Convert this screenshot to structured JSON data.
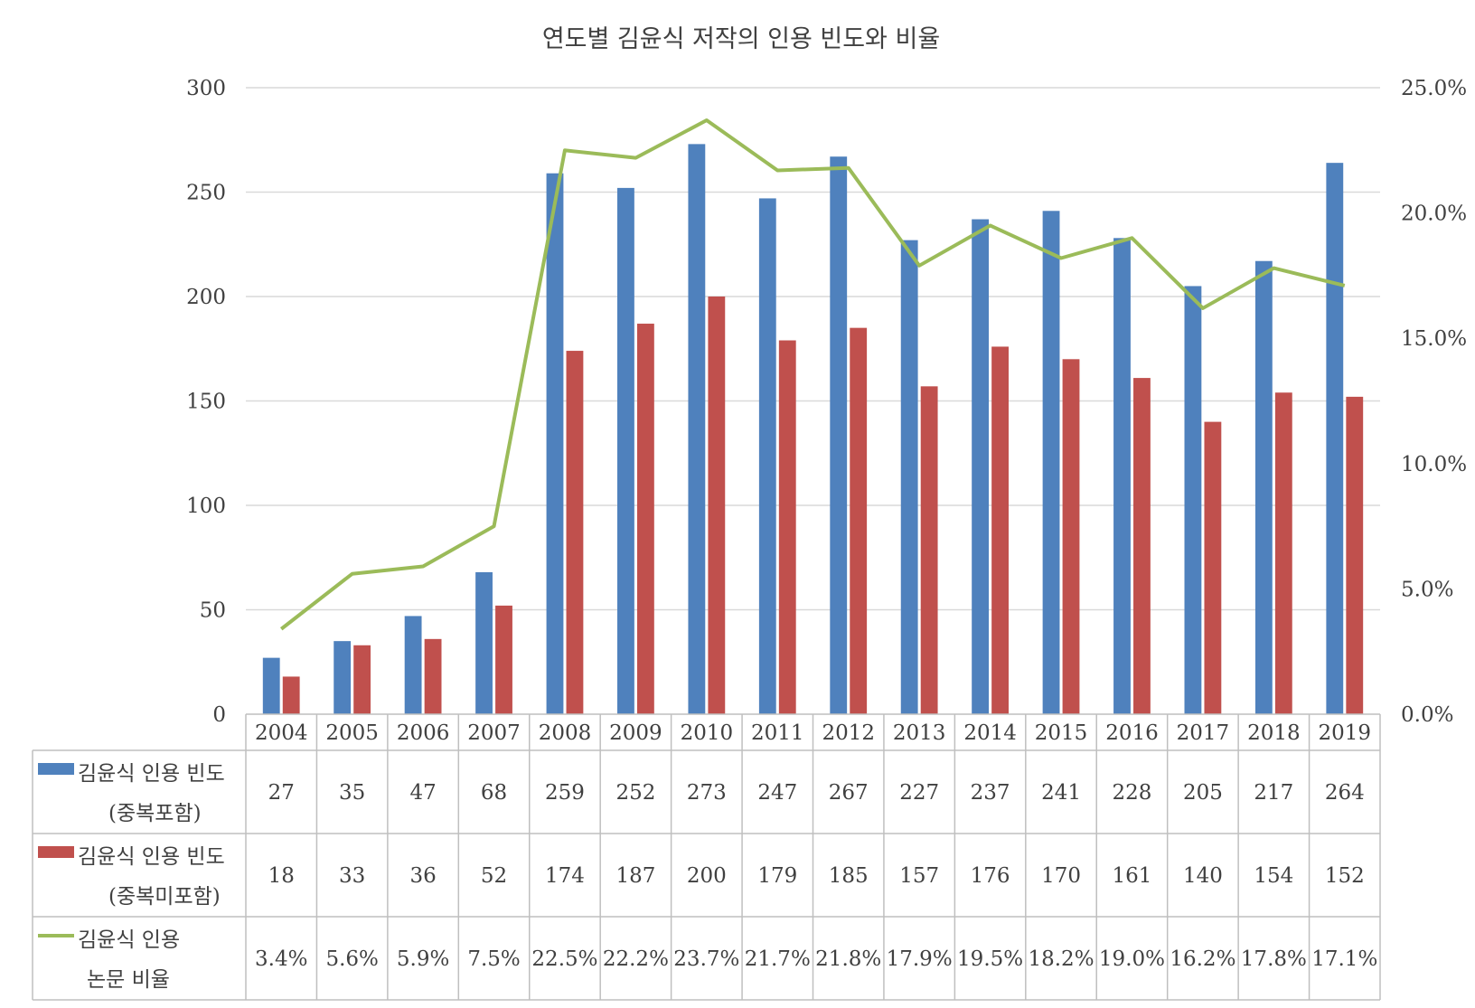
{
  "chart_data": {
    "type": "bar",
    "title": "연도별 김윤식 저작의 인용 빈도와 비율",
    "categories": [
      "2004",
      "2005",
      "2006",
      "2007",
      "2008",
      "2009",
      "2010",
      "2011",
      "2012",
      "2013",
      "2014",
      "2015",
      "2016",
      "2017",
      "2018",
      "2019"
    ],
    "y_left": {
      "min": 0,
      "max": 300,
      "ticks": [
        0,
        50,
        100,
        150,
        200,
        250,
        300
      ]
    },
    "y_right": {
      "min": 0,
      "max": 25,
      "ticks": [
        "0.0%",
        "5.0%",
        "10.0%",
        "15.0%",
        "20.0%",
        "25.0%"
      ]
    },
    "grid": true,
    "legend": "data-table",
    "series": [
      {
        "name_lines": [
          "김윤식 인용 빈도",
          "(중복포함)"
        ],
        "kind": "bar",
        "axis": "left",
        "color": "#4F81BD",
        "values": [
          27,
          35,
          47,
          68,
          259,
          252,
          273,
          247,
          267,
          227,
          237,
          241,
          228,
          205,
          217,
          264
        ],
        "labels": [
          "27",
          "35",
          "47",
          "68",
          "259",
          "252",
          "273",
          "247",
          "267",
          "227",
          "237",
          "241",
          "228",
          "205",
          "217",
          "264"
        ]
      },
      {
        "name_lines": [
          "김윤식 인용 빈도",
          "(중복미포함)"
        ],
        "kind": "bar",
        "axis": "left",
        "color": "#C0504D",
        "values": [
          18,
          33,
          36,
          52,
          174,
          187,
          200,
          179,
          185,
          157,
          176,
          170,
          161,
          140,
          154,
          152
        ],
        "labels": [
          "18",
          "33",
          "36",
          "52",
          "174",
          "187",
          "200",
          "179",
          "185",
          "157",
          "176",
          "170",
          "161",
          "140",
          "154",
          "152"
        ]
      },
      {
        "name_lines": [
          "김윤식 인용",
          "논문 비율"
        ],
        "kind": "line",
        "axis": "right",
        "color": "#9BBB59",
        "values": [
          3.4,
          5.6,
          5.9,
          7.5,
          22.5,
          22.2,
          23.7,
          21.7,
          21.8,
          17.9,
          19.5,
          18.2,
          19.0,
          16.2,
          17.8,
          17.1
        ],
        "labels": [
          "3.4%",
          "5.6%",
          "5.9%",
          "7.5%",
          "22.5%",
          "22.2%",
          "23.7%",
          "21.7%",
          "21.8%",
          "17.9%",
          "19.5%",
          "18.2%",
          "19.0%",
          "16.2%",
          "17.8%",
          "17.1%"
        ]
      }
    ],
    "colors": {
      "grid": "#D9D9D9",
      "border": "#BFBFBF",
      "text": "#404040"
    }
  }
}
